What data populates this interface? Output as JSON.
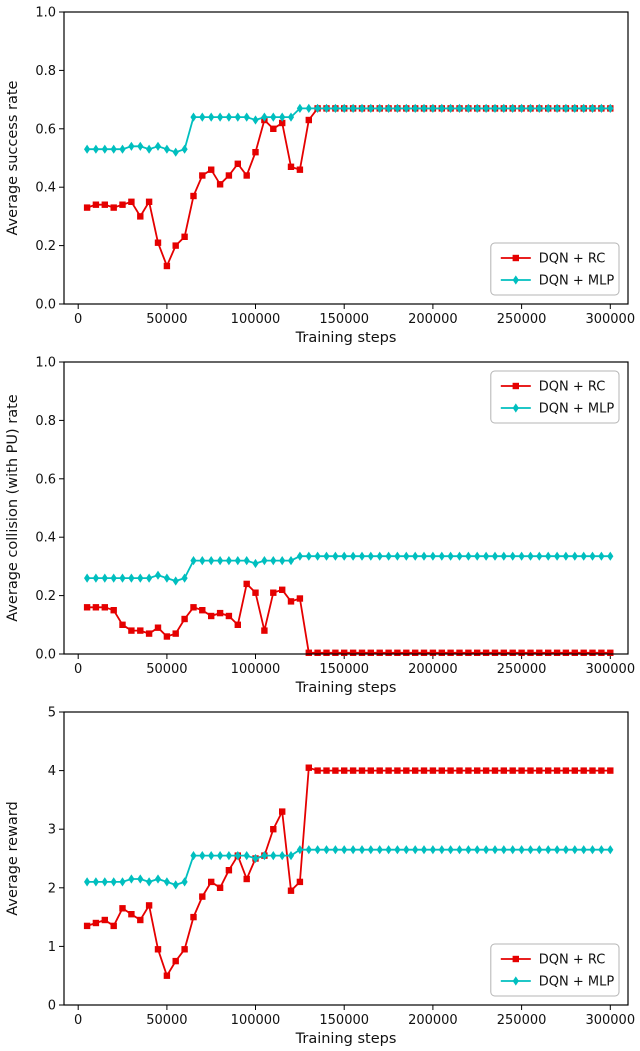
{
  "colors": {
    "rc": "#e50000",
    "mlp": "#00bfbf",
    "axis": "#000000",
    "legend_border": "#b4b4b4",
    "background": "#ffffff"
  },
  "chart_data": [
    {
      "type": "line",
      "title": "",
      "xlabel": "Training steps",
      "ylabel": "Average success rate",
      "xlim": [
        -8000,
        310000
      ],
      "ylim": [
        0,
        1.0
      ],
      "grid": false,
      "legend_position": "lower right",
      "xticks": [
        0,
        50000,
        100000,
        150000,
        200000,
        250000,
        300000
      ],
      "xtick_labels": [
        "0",
        "50000",
        "100000",
        "150000",
        "200000",
        "250000",
        "300000"
      ],
      "yticks": [
        0,
        0.2,
        0.4,
        0.6,
        0.8,
        1.0
      ],
      "ytick_labels": [
        "0.0",
        "0.2",
        "0.4",
        "0.6",
        "0.8",
        "1.0"
      ],
      "x": [
        5000,
        10000,
        15000,
        20000,
        25000,
        30000,
        35000,
        40000,
        45000,
        50000,
        55000,
        60000,
        65000,
        70000,
        75000,
        80000,
        85000,
        90000,
        95000,
        100000,
        105000,
        110000,
        115000,
        120000,
        125000,
        130000,
        135000,
        140000,
        145000,
        150000,
        155000,
        160000,
        165000,
        170000,
        175000,
        180000,
        185000,
        190000,
        195000,
        200000,
        205000,
        210000,
        215000,
        220000,
        225000,
        230000,
        235000,
        240000,
        245000,
        250000,
        255000,
        260000,
        265000,
        270000,
        275000,
        280000,
        285000,
        290000,
        295000,
        300000
      ],
      "series": [
        {
          "name": "DQN + RC",
          "color_key": "rc",
          "marker": "square",
          "values": [
            0.33,
            0.34,
            0.34,
            0.33,
            0.34,
            0.35,
            0.3,
            0.35,
            0.21,
            0.13,
            0.2,
            0.23,
            0.37,
            0.44,
            0.46,
            0.41,
            0.44,
            0.48,
            0.44,
            0.52,
            0.63,
            0.6,
            0.62,
            0.47,
            0.46,
            0.63,
            0.67,
            0.67,
            0.67,
            0.67,
            0.67,
            0.67,
            0.67,
            0.67,
            0.67,
            0.67,
            0.67,
            0.67,
            0.67,
            0.67,
            0.67,
            0.67,
            0.67,
            0.67,
            0.67,
            0.67,
            0.67,
            0.67,
            0.67,
            0.67,
            0.67,
            0.67,
            0.67,
            0.67,
            0.67,
            0.67,
            0.67,
            0.67,
            0.67,
            0.67
          ]
        },
        {
          "name": "DQN + MLP",
          "color_key": "mlp",
          "marker": "diamond",
          "values": [
            0.53,
            0.53,
            0.53,
            0.53,
            0.53,
            0.54,
            0.54,
            0.53,
            0.54,
            0.53,
            0.52,
            0.53,
            0.64,
            0.64,
            0.64,
            0.64,
            0.64,
            0.64,
            0.64,
            0.63,
            0.64,
            0.64,
            0.64,
            0.64,
            0.67,
            0.67,
            0.67,
            0.67,
            0.67,
            0.67,
            0.67,
            0.67,
            0.67,
            0.67,
            0.67,
            0.67,
            0.67,
            0.67,
            0.67,
            0.67,
            0.67,
            0.67,
            0.67,
            0.67,
            0.67,
            0.67,
            0.67,
            0.67,
            0.67,
            0.67,
            0.67,
            0.67,
            0.67,
            0.67,
            0.67,
            0.67,
            0.67,
            0.67,
            0.67,
            0.67
          ]
        }
      ]
    },
    {
      "type": "line",
      "title": "",
      "xlabel": "Training steps",
      "ylabel": "Average collision (with PU) rate",
      "xlim": [
        -8000,
        310000
      ],
      "ylim": [
        0,
        1.0
      ],
      "grid": false,
      "legend_position": "upper right",
      "xticks": [
        0,
        50000,
        100000,
        150000,
        200000,
        250000,
        300000
      ],
      "xtick_labels": [
        "0",
        "50000",
        "100000",
        "150000",
        "200000",
        "250000",
        "300000"
      ],
      "yticks": [
        0,
        0.2,
        0.4,
        0.6,
        0.8,
        1.0
      ],
      "ytick_labels": [
        "0.0",
        "0.2",
        "0.4",
        "0.6",
        "0.8",
        "1.0"
      ],
      "x": [
        5000,
        10000,
        15000,
        20000,
        25000,
        30000,
        35000,
        40000,
        45000,
        50000,
        55000,
        60000,
        65000,
        70000,
        75000,
        80000,
        85000,
        90000,
        95000,
        100000,
        105000,
        110000,
        115000,
        120000,
        125000,
        130000,
        135000,
        140000,
        145000,
        150000,
        155000,
        160000,
        165000,
        170000,
        175000,
        180000,
        185000,
        190000,
        195000,
        200000,
        205000,
        210000,
        215000,
        220000,
        225000,
        230000,
        235000,
        240000,
        245000,
        250000,
        255000,
        260000,
        265000,
        270000,
        275000,
        280000,
        285000,
        290000,
        295000,
        300000
      ],
      "series": [
        {
          "name": "DQN + RC",
          "color_key": "rc",
          "marker": "square",
          "values": [
            0.16,
            0.16,
            0.16,
            0.15,
            0.1,
            0.08,
            0.08,
            0.07,
            0.09,
            0.06,
            0.07,
            0.12,
            0.16,
            0.15,
            0.13,
            0.14,
            0.13,
            0.1,
            0.24,
            0.21,
            0.08,
            0.21,
            0.22,
            0.18,
            0.19,
            0.004,
            0.004,
            0.004,
            0.004,
            0.004,
            0.004,
            0.004,
            0.004,
            0.004,
            0.004,
            0.004,
            0.004,
            0.004,
            0.004,
            0.004,
            0.004,
            0.004,
            0.004,
            0.004,
            0.004,
            0.004,
            0.004,
            0.004,
            0.004,
            0.004,
            0.004,
            0.004,
            0.004,
            0.004,
            0.004,
            0.004,
            0.004,
            0.004,
            0.004,
            0.004
          ]
        },
        {
          "name": "DQN + MLP",
          "color_key": "mlp",
          "marker": "diamond",
          "values": [
            0.26,
            0.26,
            0.26,
            0.26,
            0.26,
            0.26,
            0.26,
            0.26,
            0.27,
            0.26,
            0.25,
            0.26,
            0.32,
            0.32,
            0.32,
            0.32,
            0.32,
            0.32,
            0.32,
            0.31,
            0.32,
            0.32,
            0.32,
            0.32,
            0.335,
            0.335,
            0.335,
            0.335,
            0.335,
            0.335,
            0.335,
            0.335,
            0.335,
            0.335,
            0.335,
            0.335,
            0.335,
            0.335,
            0.335,
            0.335,
            0.335,
            0.335,
            0.335,
            0.335,
            0.335,
            0.335,
            0.335,
            0.335,
            0.335,
            0.335,
            0.335,
            0.335,
            0.335,
            0.335,
            0.335,
            0.335,
            0.335,
            0.335,
            0.335,
            0.335
          ]
        }
      ]
    },
    {
      "type": "line",
      "title": "",
      "xlabel": "Training steps",
      "ylabel": "Average reward",
      "xlim": [
        -8000,
        310000
      ],
      "ylim": [
        0,
        5
      ],
      "grid": false,
      "legend_position": "lower right",
      "xticks": [
        0,
        50000,
        100000,
        150000,
        200000,
        250000,
        300000
      ],
      "xtick_labels": [
        "0",
        "50000",
        "100000",
        "150000",
        "200000",
        "250000",
        "300000"
      ],
      "yticks": [
        0,
        1,
        2,
        3,
        4,
        5
      ],
      "ytick_labels": [
        "0",
        "1",
        "2",
        "3",
        "4",
        "5"
      ],
      "x": [
        5000,
        10000,
        15000,
        20000,
        25000,
        30000,
        35000,
        40000,
        45000,
        50000,
        55000,
        60000,
        65000,
        70000,
        75000,
        80000,
        85000,
        90000,
        95000,
        100000,
        105000,
        110000,
        115000,
        120000,
        125000,
        130000,
        135000,
        140000,
        145000,
        150000,
        155000,
        160000,
        165000,
        170000,
        175000,
        180000,
        185000,
        190000,
        195000,
        200000,
        205000,
        210000,
        215000,
        220000,
        225000,
        230000,
        235000,
        240000,
        245000,
        250000,
        255000,
        260000,
        265000,
        270000,
        275000,
        280000,
        285000,
        290000,
        295000,
        300000
      ],
      "series": [
        {
          "name": "DQN + RC",
          "color_key": "rc",
          "marker": "square",
          "values": [
            1.35,
            1.4,
            1.45,
            1.35,
            1.65,
            1.55,
            1.45,
            1.7,
            0.95,
            0.5,
            0.75,
            0.95,
            1.5,
            1.85,
            2.1,
            2.0,
            2.3,
            2.55,
            2.15,
            2.5,
            2.55,
            3.0,
            3.3,
            1.95,
            2.1,
            4.05,
            4.0,
            4.0,
            4.0,
            4.0,
            4.0,
            4.0,
            4.0,
            4.0,
            4.0,
            4.0,
            4.0,
            4.0,
            4.0,
            4.0,
            4.0,
            4.0,
            4.0,
            4.0,
            4.0,
            4.0,
            4.0,
            4.0,
            4.0,
            4.0,
            4.0,
            4.0,
            4.0,
            4.0,
            4.0,
            4.0,
            4.0,
            4.0,
            4.0,
            4.0
          ]
        },
        {
          "name": "DQN + MLP",
          "color_key": "mlp",
          "marker": "diamond",
          "values": [
            2.1,
            2.1,
            2.1,
            2.1,
            2.1,
            2.15,
            2.15,
            2.1,
            2.15,
            2.1,
            2.05,
            2.1,
            2.55,
            2.55,
            2.55,
            2.55,
            2.55,
            2.55,
            2.55,
            2.5,
            2.55,
            2.55,
            2.55,
            2.55,
            2.65,
            2.65,
            2.65,
            2.65,
            2.65,
            2.65,
            2.65,
            2.65,
            2.65,
            2.65,
            2.65,
            2.65,
            2.65,
            2.65,
            2.65,
            2.65,
            2.65,
            2.65,
            2.65,
            2.65,
            2.65,
            2.65,
            2.65,
            2.65,
            2.65,
            2.65,
            2.65,
            2.65,
            2.65,
            2.65,
            2.65,
            2.65,
            2.65,
            2.65,
            2.65,
            2.65
          ]
        }
      ]
    }
  ]
}
